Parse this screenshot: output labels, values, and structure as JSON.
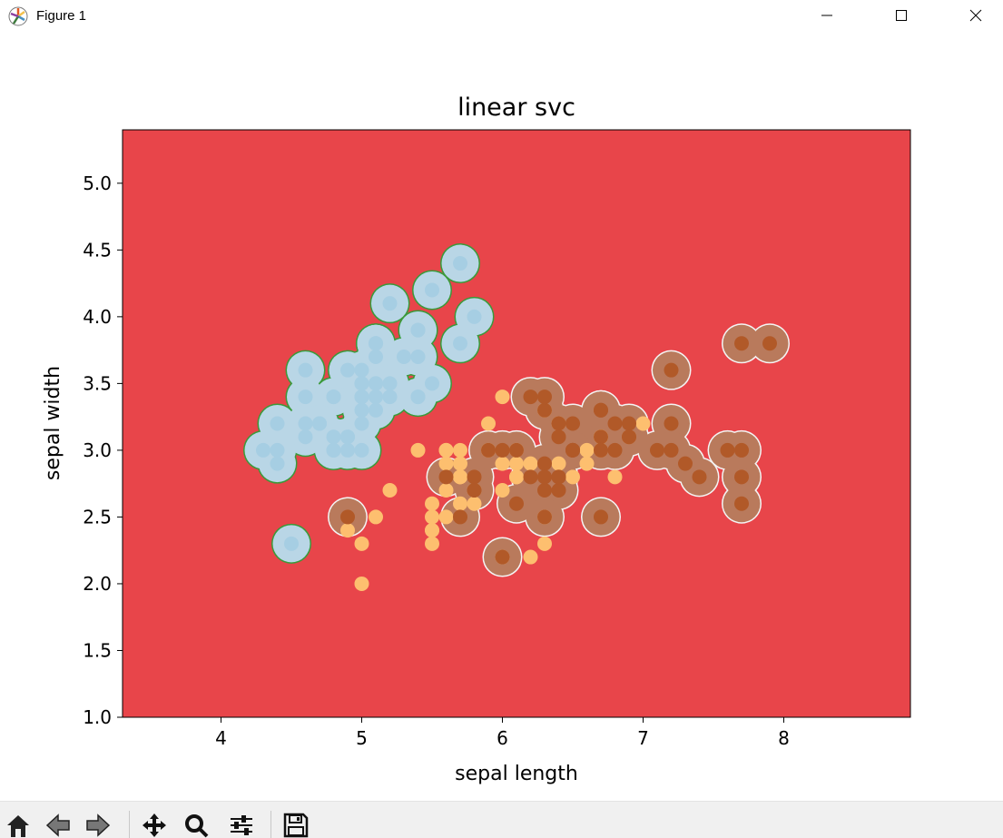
{
  "window": {
    "title": "Figure 1",
    "app_icon": "matplotlib-logo-icon",
    "controls": [
      "minimize-icon",
      "maximize-icon",
      "close-icon"
    ]
  },
  "toolbar": {
    "tools": [
      "home-icon",
      "back-arrow-icon",
      "forward-arrow-icon",
      "pan-move-icon",
      "zoom-magnifier-icon",
      "configure-subplots-icon",
      "save-floppy-icon"
    ]
  },
  "chart_data": {
    "type": "scatter",
    "title": "linear svc",
    "xlabel": "sepal length",
    "ylabel": "sepal width",
    "xlim": [
      3.3,
      8.9
    ],
    "ylim": [
      1.0,
      5.4
    ],
    "xticks": [
      4,
      5,
      6,
      7,
      8
    ],
    "yticks": [
      1.0,
      1.5,
      2.0,
      2.5,
      3.0,
      3.5,
      4.0,
      4.5,
      5.0
    ],
    "xtick_labels": [
      "4",
      "5",
      "6",
      "7",
      "8"
    ],
    "ytick_labels": [
      "1.0",
      "1.5",
      "2.0",
      "2.5",
      "3.0",
      "3.5",
      "4.0",
      "4.5",
      "5.0"
    ],
    "grid": false,
    "background_region_color": "#e8454a",
    "series": [
      {
        "class": 0,
        "color": "#a6cee3",
        "region_color": "#b9d6e6",
        "points": [
          [
            5.1,
            3.5
          ],
          [
            4.9,
            3.0
          ],
          [
            4.7,
            3.2
          ],
          [
            4.6,
            3.1
          ],
          [
            5.0,
            3.6
          ],
          [
            5.4,
            3.9
          ],
          [
            4.6,
            3.4
          ],
          [
            5.0,
            3.4
          ],
          [
            4.4,
            2.9
          ],
          [
            4.9,
            3.1
          ],
          [
            5.4,
            3.7
          ],
          [
            4.8,
            3.4
          ],
          [
            4.8,
            3.0
          ],
          [
            4.3,
            3.0
          ],
          [
            5.8,
            4.0
          ],
          [
            5.7,
            4.4
          ],
          [
            5.4,
            3.9
          ],
          [
            5.1,
            3.5
          ],
          [
            5.7,
            3.8
          ],
          [
            5.1,
            3.8
          ],
          [
            5.4,
            3.4
          ],
          [
            5.1,
            3.7
          ],
          [
            4.6,
            3.6
          ],
          [
            5.1,
            3.3
          ],
          [
            4.8,
            3.4
          ],
          [
            5.0,
            3.0
          ],
          [
            5.0,
            3.4
          ],
          [
            5.2,
            3.5
          ],
          [
            5.2,
            3.4
          ],
          [
            4.7,
            3.2
          ],
          [
            4.8,
            3.1
          ],
          [
            5.4,
            3.4
          ],
          [
            5.2,
            4.1
          ],
          [
            5.5,
            4.2
          ],
          [
            4.9,
            3.1
          ],
          [
            5.0,
            3.2
          ],
          [
            5.5,
            3.5
          ],
          [
            4.9,
            3.6
          ],
          [
            4.4,
            3.0
          ],
          [
            5.1,
            3.4
          ],
          [
            5.0,
            3.5
          ],
          [
            4.5,
            2.3
          ],
          [
            4.4,
            3.2
          ],
          [
            5.0,
            3.5
          ],
          [
            5.1,
            3.8
          ],
          [
            4.8,
            3.0
          ],
          [
            5.1,
            3.8
          ],
          [
            4.6,
            3.2
          ],
          [
            5.3,
            3.7
          ],
          [
            5.0,
            3.3
          ]
        ]
      },
      {
        "class": 1,
        "color": "#fdbf6f",
        "points": [
          [
            7.0,
            3.2
          ],
          [
            6.4,
            3.2
          ],
          [
            6.9,
            3.1
          ],
          [
            5.5,
            2.3
          ],
          [
            6.5,
            2.8
          ],
          [
            5.7,
            2.8
          ],
          [
            6.3,
            3.3
          ],
          [
            4.9,
            2.4
          ],
          [
            6.6,
            2.9
          ],
          [
            5.2,
            2.7
          ],
          [
            5.0,
            2.0
          ],
          [
            5.9,
            3.0
          ],
          [
            6.0,
            2.2
          ],
          [
            6.1,
            2.9
          ],
          [
            5.6,
            2.9
          ],
          [
            6.7,
            3.1
          ],
          [
            5.6,
            3.0
          ],
          [
            5.8,
            2.7
          ],
          [
            6.2,
            2.2
          ],
          [
            5.6,
            2.5
          ],
          [
            5.9,
            3.2
          ],
          [
            6.1,
            2.8
          ],
          [
            6.3,
            2.5
          ],
          [
            6.1,
            2.8
          ],
          [
            6.4,
            2.9
          ],
          [
            6.6,
            3.0
          ],
          [
            6.8,
            2.8
          ],
          [
            6.7,
            3.0
          ],
          [
            6.0,
            2.9
          ],
          [
            5.7,
            2.6
          ],
          [
            5.5,
            2.4
          ],
          [
            5.5,
            2.4
          ],
          [
            5.8,
            2.7
          ],
          [
            6.0,
            2.7
          ],
          [
            5.4,
            3.0
          ],
          [
            6.0,
            3.4
          ],
          [
            6.7,
            3.1
          ],
          [
            6.3,
            2.3
          ],
          [
            5.6,
            3.0
          ],
          [
            5.5,
            2.5
          ],
          [
            5.5,
            2.6
          ],
          [
            6.1,
            3.0
          ],
          [
            5.8,
            2.6
          ],
          [
            5.0,
            2.3
          ],
          [
            5.6,
            2.7
          ],
          [
            5.7,
            3.0
          ],
          [
            5.7,
            2.9
          ],
          [
            6.2,
            2.9
          ],
          [
            5.1,
            2.5
          ],
          [
            5.7,
            2.8
          ]
        ]
      },
      {
        "class": 2,
        "color": "#b15928",
        "region_color": "#b97a5c",
        "points": [
          [
            6.3,
            3.3
          ],
          [
            5.8,
            2.7
          ],
          [
            7.1,
            3.0
          ],
          [
            6.3,
            2.9
          ],
          [
            6.5,
            3.0
          ],
          [
            7.6,
            3.0
          ],
          [
            4.9,
            2.5
          ],
          [
            7.3,
            2.9
          ],
          [
            6.7,
            2.5
          ],
          [
            7.2,
            3.6
          ],
          [
            6.5,
            3.2
          ],
          [
            6.4,
            2.7
          ],
          [
            6.8,
            3.0
          ],
          [
            5.7,
            2.5
          ],
          [
            5.8,
            2.8
          ],
          [
            6.4,
            3.2
          ],
          [
            6.5,
            3.0
          ],
          [
            7.7,
            3.8
          ],
          [
            7.7,
            2.6
          ],
          [
            6.0,
            2.2
          ],
          [
            6.9,
            3.2
          ],
          [
            5.6,
            2.8
          ],
          [
            7.7,
            2.8
          ],
          [
            6.3,
            2.7
          ],
          [
            6.7,
            3.3
          ],
          [
            7.2,
            3.2
          ],
          [
            6.2,
            2.8
          ],
          [
            6.1,
            3.0
          ],
          [
            6.4,
            2.8
          ],
          [
            7.2,
            3.0
          ],
          [
            7.4,
            2.8
          ],
          [
            7.9,
            3.8
          ],
          [
            6.4,
            2.8
          ],
          [
            6.3,
            2.8
          ],
          [
            6.1,
            2.6
          ],
          [
            7.7,
            3.0
          ],
          [
            6.3,
            3.4
          ],
          [
            6.4,
            3.1
          ],
          [
            6.0,
            3.0
          ],
          [
            6.9,
            3.1
          ],
          [
            6.7,
            3.1
          ],
          [
            6.9,
            3.1
          ],
          [
            5.8,
            2.7
          ],
          [
            6.8,
            3.2
          ],
          [
            6.7,
            3.3
          ],
          [
            6.7,
            3.0
          ],
          [
            6.3,
            2.5
          ],
          [
            6.5,
            3.0
          ],
          [
            6.2,
            3.4
          ],
          [
            5.9,
            3.0
          ]
        ]
      }
    ]
  }
}
